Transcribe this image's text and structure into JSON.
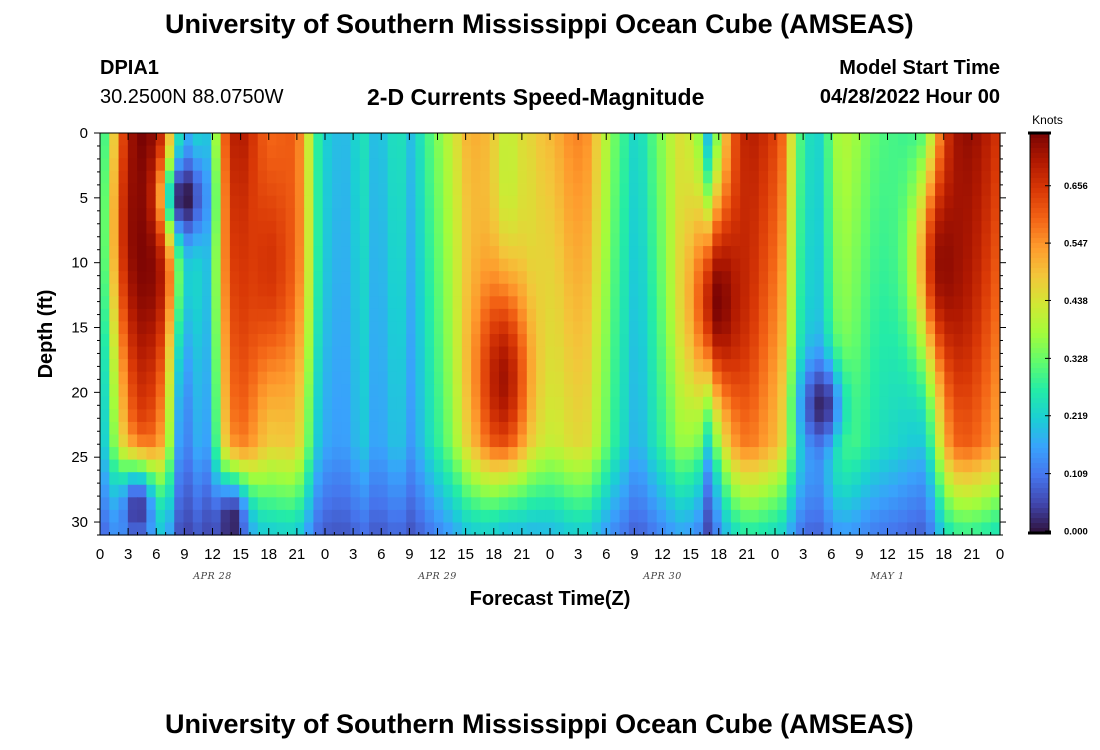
{
  "page": {
    "title": "University of Southern Mississippi Ocean Cube (AMSEAS)",
    "station_id": "DPIA1",
    "station_coords": "30.2500N  88.0750W",
    "model_start_label": "Model Start Time",
    "model_start_value": "04/28/2022 Hour 00",
    "footer_title": "University of Southern Mississippi Ocean Cube (AMSEAS)"
  },
  "colors": {
    "colormap": [
      "#30123b",
      "#4145ab",
      "#4675ed",
      "#39a2fc",
      "#1bcfd4",
      "#24eca6",
      "#61fc6c",
      "#a4fc3b",
      "#d1e834",
      "#f3c63a",
      "#fe9b2d",
      "#f36315",
      "#d93806",
      "#b11901",
      "#7a0403"
    ]
  },
  "chart_data": {
    "type": "heatmap",
    "title": "2-D Currents Speed-Magnitude",
    "xlabel": "Forecast Time(Z)",
    "ylabel": "Depth (ft)",
    "colorbar_label": "Knots",
    "x_range_hours": [
      0,
      96
    ],
    "y_range_ft": [
      0,
      31
    ],
    "x_tick_hours": [
      0,
      3,
      6,
      9,
      12,
      15,
      18,
      21,
      24,
      27,
      30,
      33,
      36,
      39,
      42,
      45,
      48,
      51,
      54,
      57,
      60,
      63,
      66,
      69,
      72,
      75,
      78,
      81,
      84,
      87,
      90,
      93,
      96
    ],
    "x_tick_labels": [
      "0",
      "3",
      "6",
      "9",
      "12",
      "15",
      "18",
      "21",
      "0",
      "3",
      "6",
      "9",
      "12",
      "15",
      "18",
      "21",
      "0",
      "3",
      "6",
      "9",
      "12",
      "15",
      "18",
      "21",
      "0",
      "3",
      "6",
      "9",
      "12",
      "15",
      "18",
      "21",
      "0"
    ],
    "y_ticks": [
      0,
      5,
      10,
      15,
      20,
      25,
      30
    ],
    "y_tick_labels": [
      "0",
      "5",
      "10",
      "15",
      "20",
      "25",
      "30"
    ],
    "date_labels": [
      {
        "text": "APR 28",
        "hour": 12
      },
      {
        "text": "APR 29",
        "hour": 36
      },
      {
        "text": "APR 30",
        "hour": 60
      },
      {
        "text": "MAY 1",
        "hour": 84
      }
    ],
    "colorbar_ticks": [
      0.0,
      0.109,
      0.219,
      0.328,
      0.438,
      0.547,
      0.656
    ],
    "colorbar_tick_labels": [
      "0.000",
      "0.109",
      "0.219",
      "0.328",
      "0.438",
      "0.547",
      "0.656"
    ],
    "value_range": [
      0,
      0.76
    ],
    "surface_speed_knots": [
      [
        0,
        0.21
      ],
      [
        1,
        0.32
      ],
      [
        2,
        0.5
      ],
      [
        3,
        0.63
      ],
      [
        4,
        0.73
      ],
      [
        5,
        0.74
      ],
      [
        6,
        0.72
      ],
      [
        7,
        0.62
      ],
      [
        8,
        0.3
      ],
      [
        9,
        0.14
      ],
      [
        10,
        0.3
      ],
      [
        11,
        0.2
      ],
      [
        12,
        0.28
      ],
      [
        13,
        0.55
      ],
      [
        14,
        0.66
      ],
      [
        15,
        0.68
      ],
      [
        16,
        0.64
      ],
      [
        17,
        0.58
      ],
      [
        18,
        0.55
      ],
      [
        19,
        0.58
      ],
      [
        20,
        0.62
      ],
      [
        21,
        0.63
      ],
      [
        22,
        0.5
      ],
      [
        23,
        0.32
      ],
      [
        24,
        0.24
      ],
      [
        25,
        0.2
      ],
      [
        26,
        0.17
      ],
      [
        27,
        0.18
      ],
      [
        28,
        0.22
      ],
      [
        29,
        0.16
      ],
      [
        30,
        0.17
      ],
      [
        31,
        0.23
      ],
      [
        32,
        0.27
      ],
      [
        33,
        0.22
      ],
      [
        34,
        0.28
      ],
      [
        35,
        0.34
      ],
      [
        36,
        0.38
      ],
      [
        37,
        0.41
      ],
      [
        38,
        0.44
      ],
      [
        39,
        0.48
      ],
      [
        40,
        0.48
      ],
      [
        41,
        0.47
      ],
      [
        42,
        0.44
      ],
      [
        43,
        0.4
      ],
      [
        44,
        0.42
      ],
      [
        45,
        0.47
      ],
      [
        46,
        0.5
      ],
      [
        47,
        0.53
      ],
      [
        48,
        0.54
      ],
      [
        49,
        0.55
      ],
      [
        50,
        0.56
      ],
      [
        51,
        0.55
      ],
      [
        52,
        0.52
      ],
      [
        53,
        0.44
      ],
      [
        54,
        0.36
      ],
      [
        55,
        0.3
      ],
      [
        56,
        0.27
      ],
      [
        57,
        0.24
      ],
      [
        58,
        0.28
      ],
      [
        59,
        0.35
      ],
      [
        60,
        0.4
      ],
      [
        61,
        0.44
      ],
      [
        62,
        0.46
      ],
      [
        63,
        0.4
      ],
      [
        64,
        0.3
      ],
      [
        65,
        0.05
      ],
      [
        66,
        0.3
      ],
      [
        67,
        0.48
      ],
      [
        68,
        0.62
      ],
      [
        69,
        0.69
      ],
      [
        70,
        0.71
      ],
      [
        71,
        0.7
      ],
      [
        72,
        0.68
      ],
      [
        73,
        0.62
      ],
      [
        74,
        0.42
      ],
      [
        75,
        0.28
      ],
      [
        76,
        0.22
      ],
      [
        77,
        0.2
      ],
      [
        78,
        0.3
      ],
      [
        79,
        0.36
      ],
      [
        80,
        0.36
      ],
      [
        81,
        0.35
      ],
      [
        82,
        0.34
      ],
      [
        83,
        0.34
      ],
      [
        84,
        0.34
      ],
      [
        85,
        0.33
      ],
      [
        86,
        0.3
      ],
      [
        87,
        0.26
      ],
      [
        88,
        0.22
      ],
      [
        89,
        0.35
      ],
      [
        90,
        0.55
      ],
      [
        91,
        0.66
      ],
      [
        92,
        0.7
      ],
      [
        93,
        0.71
      ],
      [
        94,
        0.71
      ],
      [
        95,
        0.7
      ],
      [
        96,
        0.68
      ]
    ],
    "features": [
      {
        "label": "max band",
        "t_hours": 5,
        "depth_ft": 8,
        "speed_knots": 0.76
      },
      {
        "label": "max band",
        "t_hours": 18,
        "depth_ft": 10,
        "speed_knots": 0.66
      },
      {
        "label": "max band",
        "t_hours": 43,
        "depth_ft": 19,
        "speed_knots": 0.72
      },
      {
        "label": "max band",
        "t_hours": 66,
        "depth_ft": 13,
        "speed_knots": 0.76
      },
      {
        "label": "max band",
        "t_hours": 90,
        "depth_ft": 10,
        "speed_knots": 0.74
      },
      {
        "label": "minimum",
        "t_hours": 9,
        "depth_ft": 5,
        "speed_knots": 0.0
      },
      {
        "label": "minimum",
        "t_hours": 77,
        "depth_ft": 21,
        "speed_knots": 0.02
      },
      {
        "label": "minimum",
        "t_hours": 14,
        "depth_ft": 30,
        "speed_knots": 0.02
      },
      {
        "label": "minimum",
        "t_hours": 4,
        "depth_ft": 29,
        "speed_knots": 0.05
      }
    ]
  }
}
